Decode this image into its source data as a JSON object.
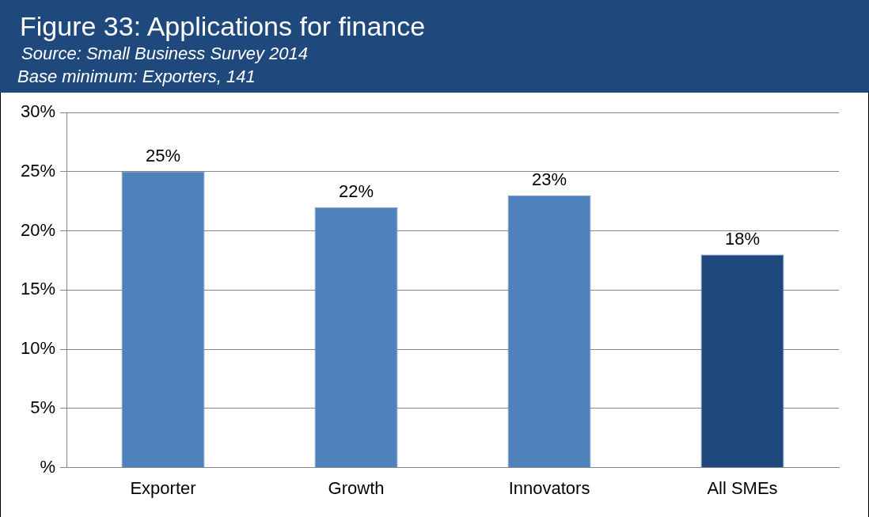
{
  "chart_data": {
    "type": "bar",
    "title": "Figure 33:  Applications for finance",
    "subtitle": "Source: Small Business Survey 2014",
    "annotations": [
      "Base minimum: Exporters, 141"
    ],
    "categories": [
      "Exporter",
      "Growth",
      "Innovators",
      "All SMEs"
    ],
    "values": [
      25,
      22,
      23,
      18
    ],
    "colors": [
      "#4f81bd",
      "#4f81bd",
      "#4f81bd",
      "#1f497d"
    ],
    "ylim": [
      0,
      30
    ],
    "yticks": [
      {
        "value": 0,
        "label": "%"
      },
      {
        "value": 5,
        "label": "5%"
      },
      {
        "value": 10,
        "label": "10%"
      },
      {
        "value": 15,
        "label": "15%"
      },
      {
        "value": 20,
        "label": "20%"
      },
      {
        "value": 25,
        "label": "25%"
      },
      {
        "value": 30,
        "label": "30%"
      }
    ],
    "value_labels": [
      "25%",
      "22%",
      "23%",
      "18%"
    ],
    "grid": "y",
    "legend": false
  }
}
